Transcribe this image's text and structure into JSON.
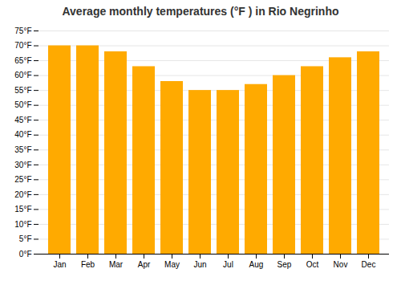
{
  "chart_data": {
    "type": "bar",
    "title": "Average monthly temperatures (°F ) in Rio Negrinho",
    "categories": [
      "Jan",
      "Feb",
      "Mar",
      "Apr",
      "May",
      "Jun",
      "Jul",
      "Aug",
      "Sep",
      "Oct",
      "Nov",
      "Dec"
    ],
    "values": [
      70,
      70,
      68,
      63,
      58,
      55,
      55,
      57,
      60,
      63,
      66,
      68
    ],
    "color": "#FFAA00",
    "ylim": [
      0,
      75
    ],
    "yticks": [
      {
        "value": 0,
        "label": "0°F"
      },
      {
        "value": 5,
        "label": "5°F"
      },
      {
        "value": 10,
        "label": "10°F"
      },
      {
        "value": 15,
        "label": "15°F"
      },
      {
        "value": 20,
        "label": "20°F"
      },
      {
        "value": 25,
        "label": "25°F"
      },
      {
        "value": 30,
        "label": "30°F"
      },
      {
        "value": 35,
        "label": "35°F"
      },
      {
        "value": 40,
        "label": "40°F"
      },
      {
        "value": 45,
        "label": "45°F"
      },
      {
        "value": 50,
        "label": "50°F"
      },
      {
        "value": 55,
        "label": "55°F"
      },
      {
        "value": 60,
        "label": "60°F"
      },
      {
        "value": 65,
        "label": "65°F"
      },
      {
        "value": 70,
        "label": "70°F"
      },
      {
        "value": 75,
        "label": "75°F"
      }
    ],
    "grid": true
  }
}
